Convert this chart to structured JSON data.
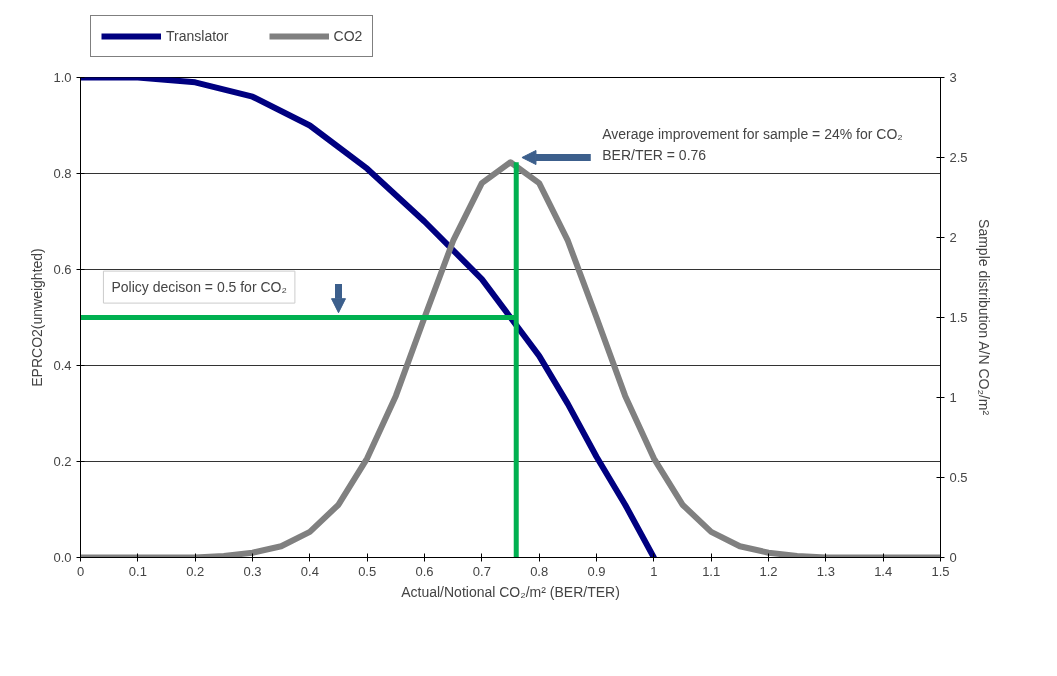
{
  "chart_data": {
    "type": "line",
    "xlabel": "Actual/Notional CO₂/m² (BER/TER)",
    "ylabel": "EPRCO2(unweighted)",
    "y2label": "Sample distribution A/N CO₂/m²",
    "xlim": [
      0,
      1.5
    ],
    "xticks": [
      0,
      0.1,
      0.2,
      0.3,
      0.4,
      0.5,
      0.6,
      0.7,
      0.8,
      0.9,
      1,
      1.1,
      1.2,
      1.3,
      1.4,
      1.5
    ],
    "ylim": [
      0,
      1
    ],
    "yticks": [
      {
        "value": 0,
        "label": "0.0"
      },
      0.2,
      0.4,
      0.6,
      0.8,
      {
        "value": 1,
        "label": "1.0"
      }
    ],
    "y2lim": [
      0,
      3
    ],
    "y2ticks": [
      0,
      0.5,
      1,
      1.5,
      2,
      2.5,
      3
    ],
    "grid": "y",
    "legend": "top left",
    "line_style": "solid",
    "series": [
      {
        "name": "Translator",
        "color": "#000080",
        "x": [
          0,
          0.1,
          0.2,
          0.3,
          0.4,
          0.5,
          0.6,
          0.7,
          0.75,
          0.8,
          0.85,
          0.9,
          0.95,
          1.0
        ],
        "values": [
          1.0,
          1.0,
          0.99,
          0.96,
          0.9,
          0.81,
          0.7,
          0.58,
          0.5,
          0.42,
          0.32,
          0.21,
          0.11,
          0.0
        ]
      },
      {
        "name": "CO2",
        "color": "#808080",
        "axis": "y2",
        "x": [
          0,
          0.1,
          0.2,
          0.25,
          0.3,
          0.35,
          0.4,
          0.45,
          0.5,
          0.55,
          0.6,
          0.65,
          0.7,
          0.75,
          0.8,
          0.85,
          0.9,
          0.95,
          1.0,
          1.05,
          1.1,
          1.15,
          1.2,
          1.25,
          1.3,
          1.4,
          1.5
        ],
        "values": [
          0,
          0,
          0,
          0.01,
          0.03,
          0.07,
          0.16,
          0.33,
          0.62,
          1.01,
          1.5,
          1.98,
          2.34,
          2.47,
          2.34,
          1.98,
          1.5,
          1.01,
          0.62,
          0.33,
          0.16,
          0.07,
          0.03,
          0.01,
          0,
          0,
          0
        ]
      }
    ],
    "ref_lines": [
      {
        "axis": "y",
        "value": 0.5,
        "label": "Policy decison = 0.5 for CO₂",
        "color": "#00b050"
      },
      {
        "axis": "x",
        "value": 0.76,
        "label": "Average improvement for sample = 24% for CO₂\nBER/TER = 0.76",
        "color": "#00b050"
      }
    ]
  }
}
